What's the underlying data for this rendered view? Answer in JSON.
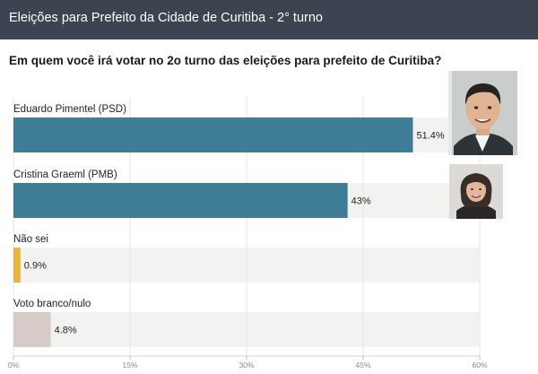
{
  "header": {
    "title": "Eleições para Prefeito da Cidade de Curitiba - 2° turno"
  },
  "question": "Em quem você irá votar no 2o turno das eleições para prefeito de Curitiba?",
  "colors": {
    "bar_primary": "#3f7d97",
    "bar_nao_sei": "#e8b53c",
    "bar_branco": "#d6cbc6",
    "track": "#f2f2f0",
    "header_bg": "#3c4451"
  },
  "chart_data": {
    "type": "bar",
    "orientation": "horizontal",
    "title": "Em quem você irá votar no 2o turno das eleições para prefeito de Curitiba?",
    "categories": [
      "Eduardo Pimentel (PSD)",
      "Cristina Graeml (PMB)",
      "Não sei",
      "Voto branco/nulo"
    ],
    "values": [
      51.4,
      43,
      0.9,
      4.8
    ],
    "value_labels": [
      "51.4%",
      "43%",
      "0.9%",
      "4.8%"
    ],
    "bar_colors": [
      "#3f7d97",
      "#3f7d97",
      "#e8b53c",
      "#d6cbc6"
    ],
    "xlim": [
      0,
      60
    ],
    "xticks": [
      0,
      15,
      30,
      45,
      60
    ],
    "xtick_labels": [
      "0%",
      "15%",
      "30%",
      "45%",
      "60%"
    ],
    "grid": true,
    "xlabel": "",
    "ylabel": ""
  }
}
